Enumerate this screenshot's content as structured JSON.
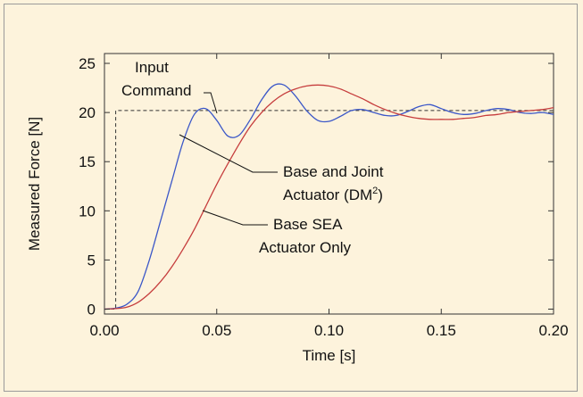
{
  "chart_data": {
    "type": "line",
    "xlabel": "Time [s]",
    "ylabel": "Measured Force [N]",
    "xlim": [
      0,
      0.2
    ],
    "ylim": [
      -0.5,
      26
    ],
    "xticks": [
      "0.00",
      "0.05",
      "0.10",
      "0.15",
      "0.20"
    ],
    "yticks": [
      "0",
      "5",
      "10",
      "15",
      "20",
      "25"
    ],
    "xtick_values": [
      0,
      0.05,
      0.1,
      0.15,
      0.2
    ],
    "ytick_values": [
      0,
      5,
      10,
      15,
      20,
      25
    ],
    "grid": false,
    "series": [
      {
        "name": "Input Command",
        "style": "dashed",
        "color": "#333333",
        "x": [
          0,
          0.005,
          0.005,
          0.2
        ],
        "y": [
          0,
          0,
          20.2,
          20.2
        ]
      },
      {
        "name": "Base and Joint Actuator (DM2)",
        "style": "solid",
        "color": "#3b57c8",
        "x": [
          0,
          0.005,
          0.01,
          0.015,
          0.02,
          0.025,
          0.03,
          0.035,
          0.04,
          0.045,
          0.05,
          0.055,
          0.06,
          0.065,
          0.07,
          0.075,
          0.08,
          0.085,
          0.09,
          0.095,
          0.1,
          0.105,
          0.11,
          0.115,
          0.12,
          0.125,
          0.13,
          0.135,
          0.14,
          0.145,
          0.15,
          0.155,
          0.16,
          0.165,
          0.17,
          0.175,
          0.18,
          0.185,
          0.19,
          0.195,
          0.2
        ],
        "y": [
          0,
          0.1,
          0.5,
          1.8,
          5,
          9,
          13,
          17,
          19.8,
          20.4,
          19.2,
          17.6,
          17.7,
          19.3,
          21.3,
          22.7,
          22.8,
          21.7,
          20.2,
          19.2,
          19.1,
          19.6,
          20.2,
          20.3,
          20,
          19.7,
          19.7,
          20.1,
          20.6,
          20.8,
          20.4,
          20,
          19.8,
          19.9,
          20.2,
          20.4,
          20.3,
          20,
          19.9,
          20,
          19.8
        ]
      },
      {
        "name": "Base SEA Actuator Only",
        "style": "solid",
        "color": "#c63d3d",
        "x": [
          0,
          0.005,
          0.01,
          0.015,
          0.02,
          0.025,
          0.03,
          0.035,
          0.04,
          0.045,
          0.05,
          0.055,
          0.06,
          0.065,
          0.07,
          0.075,
          0.08,
          0.085,
          0.09,
          0.095,
          0.1,
          0.105,
          0.11,
          0.115,
          0.12,
          0.125,
          0.13,
          0.135,
          0.14,
          0.145,
          0.15,
          0.155,
          0.16,
          0.165,
          0.17,
          0.175,
          0.18,
          0.185,
          0.19,
          0.195,
          0.2
        ],
        "y": [
          0,
          0.05,
          0.2,
          0.7,
          1.6,
          2.8,
          4.3,
          6.1,
          8.1,
          10.4,
          12.7,
          14.8,
          16.8,
          18.6,
          20,
          21.1,
          21.9,
          22.4,
          22.7,
          22.8,
          22.7,
          22.4,
          21.9,
          21.4,
          20.8,
          20.3,
          19.9,
          19.6,
          19.4,
          19.3,
          19.3,
          19.3,
          19.4,
          19.5,
          19.7,
          19.8,
          20,
          20.1,
          20.2,
          20.3,
          20.5
        ]
      }
    ],
    "annotations": [
      {
        "lines": [
          "Input",
          "Command"
        ]
      },
      {
        "lines": [
          "Base and Joint",
          "Actuator (DM",
          "2",
          ")"
        ]
      },
      {
        "lines": [
          "Base SEA",
          "Actuator Only"
        ]
      }
    ]
  }
}
